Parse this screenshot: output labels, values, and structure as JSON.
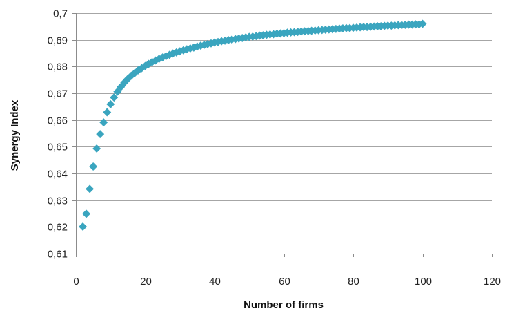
{
  "chart_data": {
    "type": "scatter",
    "title": "",
    "xlabel": "Number of firms",
    "ylabel": "Synergy Index",
    "xlim": [
      0,
      120
    ],
    "ylim": [
      0.61,
      0.7
    ],
    "xticks": [
      0,
      20,
      40,
      60,
      80,
      100,
      120
    ],
    "yticks": [
      0.61,
      0.62,
      0.63,
      0.64,
      0.65,
      0.66,
      0.67,
      0.68,
      0.69,
      0.7
    ],
    "xtick_labels": [
      "0",
      "20",
      "40",
      "60",
      "80",
      "100",
      "120"
    ],
    "ytick_labels": [
      "0,61",
      "0,62",
      "0,63",
      "0,64",
      "0,65",
      "0,66",
      "0,67",
      "0,68",
      "0,69",
      "0,7"
    ],
    "grid": "horizontal",
    "legend": "none",
    "marker": "diamond",
    "marker_color": "#3aa5bf",
    "series": [
      {
        "x": [
          2,
          3,
          4,
          5,
          6,
          7,
          8,
          9,
          10,
          11,
          12,
          13,
          14,
          15,
          16,
          17,
          18,
          19,
          20,
          21,
          22,
          23,
          24,
          25,
          26,
          27,
          28,
          29,
          30,
          31,
          32,
          33,
          34,
          35,
          36,
          37,
          38,
          39,
          40,
          41,
          42,
          43,
          44,
          45,
          46,
          47,
          48,
          49,
          50,
          51,
          52,
          53,
          54,
          55,
          56,
          57,
          58,
          59,
          60,
          61,
          62,
          63,
          64,
          65,
          66,
          67,
          68,
          69,
          70,
          71,
          72,
          73,
          74,
          75,
          76,
          77,
          78,
          79,
          80,
          81,
          82,
          83,
          84,
          85,
          86,
          87,
          88,
          89,
          90,
          91,
          92,
          93,
          94,
          95,
          96,
          97,
          98,
          99,
          100
        ],
        "y": [
          0.6201,
          0.6249,
          0.6342,
          0.6426,
          0.6493,
          0.6547,
          0.6591,
          0.6629,
          0.6659,
          0.6684,
          0.6706,
          0.6724,
          0.674,
          0.6754,
          0.6766,
          0.6776,
          0.6786,
          0.6794,
          0.6802,
          0.681,
          0.6817,
          0.6823,
          0.6829,
          0.6834,
          0.6839,
          0.6844,
          0.6849,
          0.6853,
          0.6857,
          0.6861,
          0.6865,
          0.6868,
          0.6871,
          0.6875,
          0.6878,
          0.6881,
          0.6884,
          0.6887,
          0.689,
          0.6892,
          0.6895,
          0.6897,
          0.6899,
          0.6901,
          0.6903,
          0.6905,
          0.6907,
          0.6909,
          0.6911,
          0.6912,
          0.6914,
          0.6916,
          0.6917,
          0.6919,
          0.692,
          0.6921,
          0.6923,
          0.6924,
          0.6925,
          0.6927,
          0.6928,
          0.6929,
          0.693,
          0.6931,
          0.6932,
          0.6933,
          0.6934,
          0.6935,
          0.6936,
          0.6937,
          0.6938,
          0.6939,
          0.694,
          0.6941,
          0.6942,
          0.6943,
          0.6944,
          0.6944,
          0.6945,
          0.6946,
          0.6947,
          0.6948,
          0.6948,
          0.6949,
          0.695,
          0.6951,
          0.6951,
          0.6952,
          0.6953,
          0.6953,
          0.6954,
          0.6955,
          0.6955,
          0.6956,
          0.6957,
          0.6957,
          0.6958,
          0.6958,
          0.696
        ]
      }
    ]
  }
}
